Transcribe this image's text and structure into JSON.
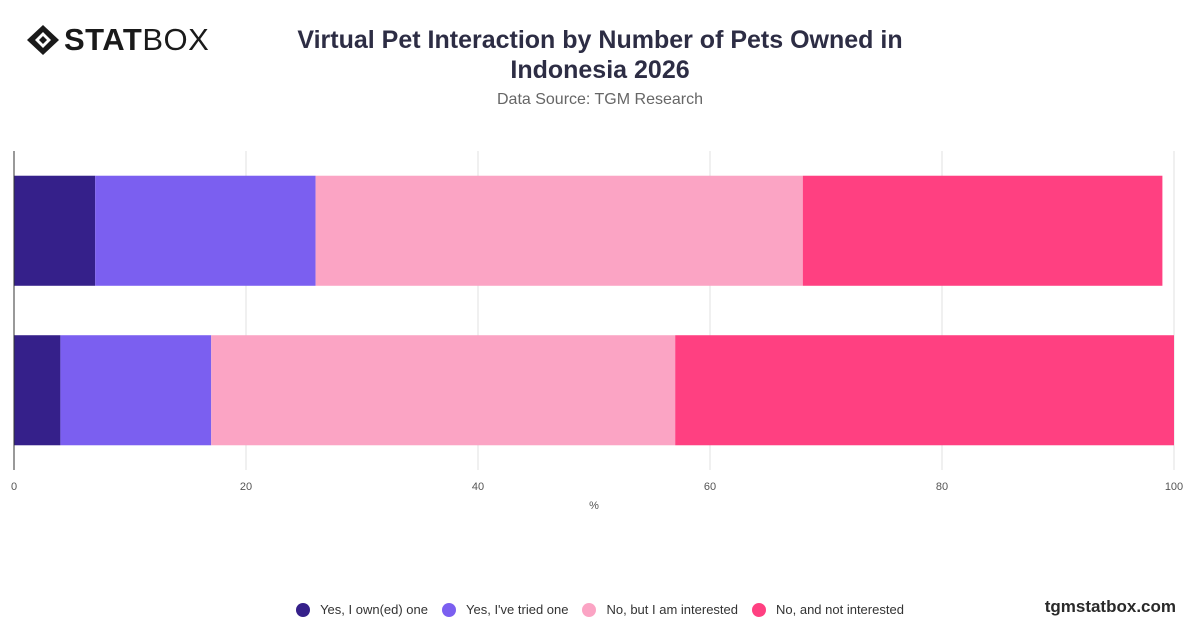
{
  "brand": {
    "logo_bold": "STAT",
    "logo_light": "BOX",
    "footer": "tgmstatbox.com"
  },
  "chart_data": {
    "type": "bar",
    "orientation": "horizontal",
    "stacked": true,
    "title": "Virtual Pet Interaction by Number of Pets Owned in Indonesia 2026",
    "subtitle": "Data Source: TGM Research",
    "xlabel": "%",
    "ylabel": "",
    "xlim": [
      0,
      100
    ],
    "xticks": [
      0,
      20,
      40,
      60,
      80,
      100
    ],
    "grid": true,
    "legend_position": "bottom",
    "categories": [
      "",
      ""
    ],
    "series": [
      {
        "name": "Yes, I own(ed) one",
        "color": "#35208a",
        "values": [
          7,
          4
        ]
      },
      {
        "name": "Yes, I've tried one",
        "color": "#7b5ff0",
        "values": [
          19,
          13
        ]
      },
      {
        "name": "No, but I am interested",
        "color": "#fba4c4",
        "values": [
          42,
          40
        ]
      },
      {
        "name": "No, and not interested",
        "color": "#ff4081",
        "values": [
          31,
          43
        ]
      }
    ]
  }
}
